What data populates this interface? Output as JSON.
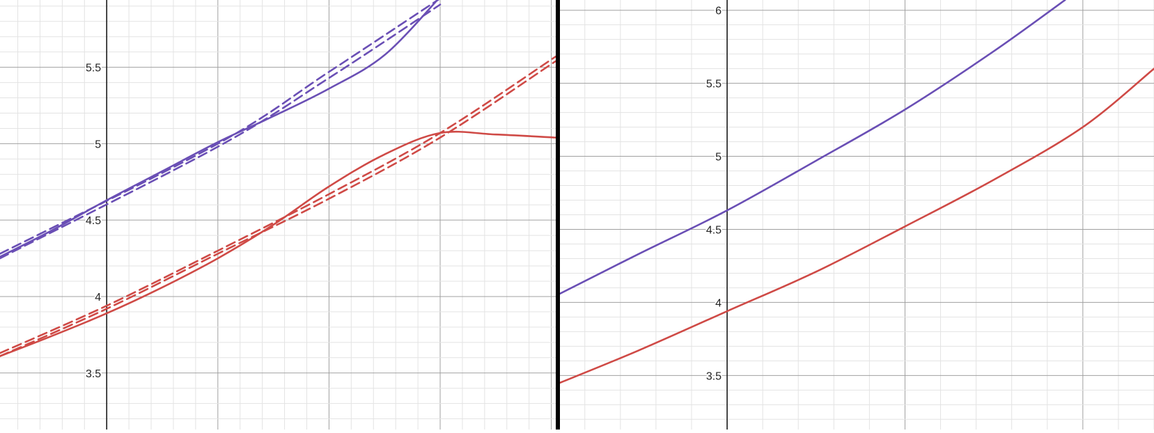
{
  "chart_data": [
    {
      "type": "line",
      "title": "",
      "xlabel": "",
      "ylabel": "",
      "xlim": [
        -0.48,
        2.02
      ],
      "ylim": [
        3.13,
        5.94
      ],
      "grid": true,
      "legend": "none",
      "y_tick_labels": [
        {
          "value": 3.5,
          "label": "3.5"
        },
        {
          "value": 4,
          "label": "4"
        },
        {
          "value": 4.5,
          "label": "4.5"
        },
        {
          "value": 5,
          "label": "5"
        },
        {
          "value": 5.5,
          "label": "5.5"
        }
      ],
      "series": [
        {
          "color": "#6a4fb5",
          "style": "solid",
          "x": [
            -0.48,
            -0.25,
            0.0,
            0.25,
            0.5,
            0.75,
            1.0,
            1.25,
            1.5
          ],
          "y": [
            4.26,
            4.43,
            4.63,
            4.82,
            5.01,
            5.18,
            5.36,
            5.58,
            5.96
          ]
        },
        {
          "color": "#6a4fb5",
          "style": "dashed",
          "x": [
            -0.48,
            0.5,
            1.0,
            1.5
          ],
          "y": [
            4.28,
            5.0,
            5.47,
            5.95
          ]
        },
        {
          "color": "#6a4fb5",
          "style": "dashed",
          "x": [
            -0.48,
            0.5,
            1.0,
            1.5
          ],
          "y": [
            4.25,
            4.98,
            5.43,
            5.91
          ]
        },
        {
          "color": "#cf4a46",
          "style": "solid",
          "x": [
            -0.48,
            -0.25,
            0.0,
            0.25,
            0.5,
            0.75,
            1.0,
            1.25,
            1.5,
            1.75,
            2.02
          ],
          "y": [
            3.61,
            3.74,
            3.89,
            4.06,
            4.25,
            4.47,
            4.72,
            4.93,
            5.07,
            5.06,
            5.04
          ]
        },
        {
          "color": "#cf4a46",
          "style": "dashed",
          "x": [
            -0.48,
            0.0,
            0.5,
            1.0,
            1.5,
            2.02
          ],
          "y": [
            3.63,
            3.94,
            4.3,
            4.67,
            5.07,
            5.57
          ]
        },
        {
          "color": "#cf4a46",
          "style": "dashed",
          "x": [
            -0.48,
            0.0,
            0.5,
            1.0,
            1.5,
            2.02
          ],
          "y": [
            3.61,
            3.92,
            4.28,
            4.64,
            5.04,
            5.54
          ]
        }
      ]
    },
    {
      "type": "line",
      "title": "",
      "xlabel": "",
      "ylabel": "",
      "xlim": [
        -0.47,
        1.2
      ],
      "ylim": [
        3.13,
        6.07
      ],
      "grid": true,
      "legend": "none",
      "y_tick_labels": [
        {
          "value": 3.5,
          "label": "3.5"
        },
        {
          "value": 4,
          "label": "4"
        },
        {
          "value": 4.5,
          "label": "4.5"
        },
        {
          "value": 5,
          "label": "5"
        },
        {
          "value": 5.5,
          "label": "5.5"
        },
        {
          "value": 6,
          "label": "6"
        }
      ],
      "series": [
        {
          "color": "#6a4fb5",
          "style": "solid",
          "x": [
            -0.47,
            -0.25,
            0.0,
            0.25,
            0.5,
            0.75,
            0.95
          ],
          "y": [
            4.06,
            4.33,
            4.63,
            4.97,
            5.32,
            5.72,
            6.07
          ]
        },
        {
          "color": "#cf4a46",
          "style": "solid",
          "x": [
            -0.47,
            -0.25,
            0.0,
            0.25,
            0.5,
            0.75,
            1.0,
            1.2
          ],
          "y": [
            3.45,
            3.67,
            3.94,
            4.21,
            4.52,
            4.84,
            5.2,
            5.6
          ]
        }
      ]
    }
  ]
}
